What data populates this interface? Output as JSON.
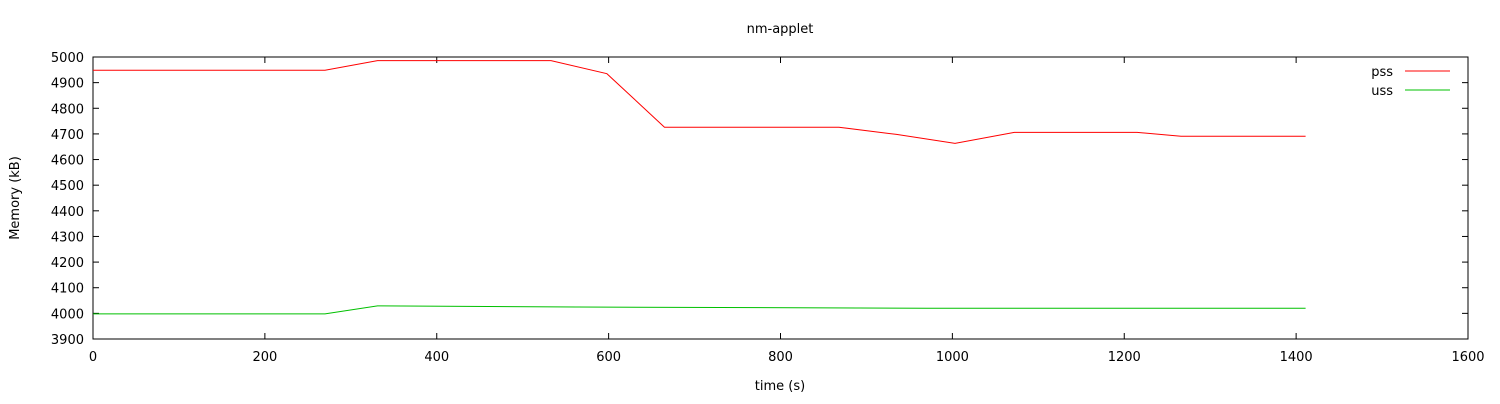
{
  "chart_data": {
    "type": "line",
    "title": "nm-applet",
    "xlabel": "time (s)",
    "ylabel": "Memory (kB)",
    "xlim": [
      0,
      1600
    ],
    "ylim": [
      3900,
      5000
    ],
    "xticks": [
      0,
      200,
      400,
      600,
      800,
      1000,
      1200,
      1400,
      1600
    ],
    "yticks": [
      3900,
      4000,
      4100,
      4200,
      4300,
      4400,
      4500,
      4600,
      4700,
      4800,
      4900,
      5000
    ],
    "grid": false,
    "legend_position": "top-right",
    "series": [
      {
        "name": "pss",
        "color": "#ff0000",
        "x": [
          0,
          270,
          331,
          533,
          598,
          665,
          868,
          935,
          1003,
          1072,
          1215,
          1266,
          1411
        ],
        "y": [
          4948,
          4948,
          4986,
          4986,
          4935,
          4726,
          4726,
          4698,
          4663,
          4706,
          4706,
          4691,
          4691
        ]
      },
      {
        "name": "uss",
        "color": "#00c000",
        "x": [
          0,
          270,
          331,
          563,
          970,
          1411
        ],
        "y": [
          3998,
          3998,
          4029,
          4025,
          4020,
          4020
        ]
      }
    ]
  }
}
